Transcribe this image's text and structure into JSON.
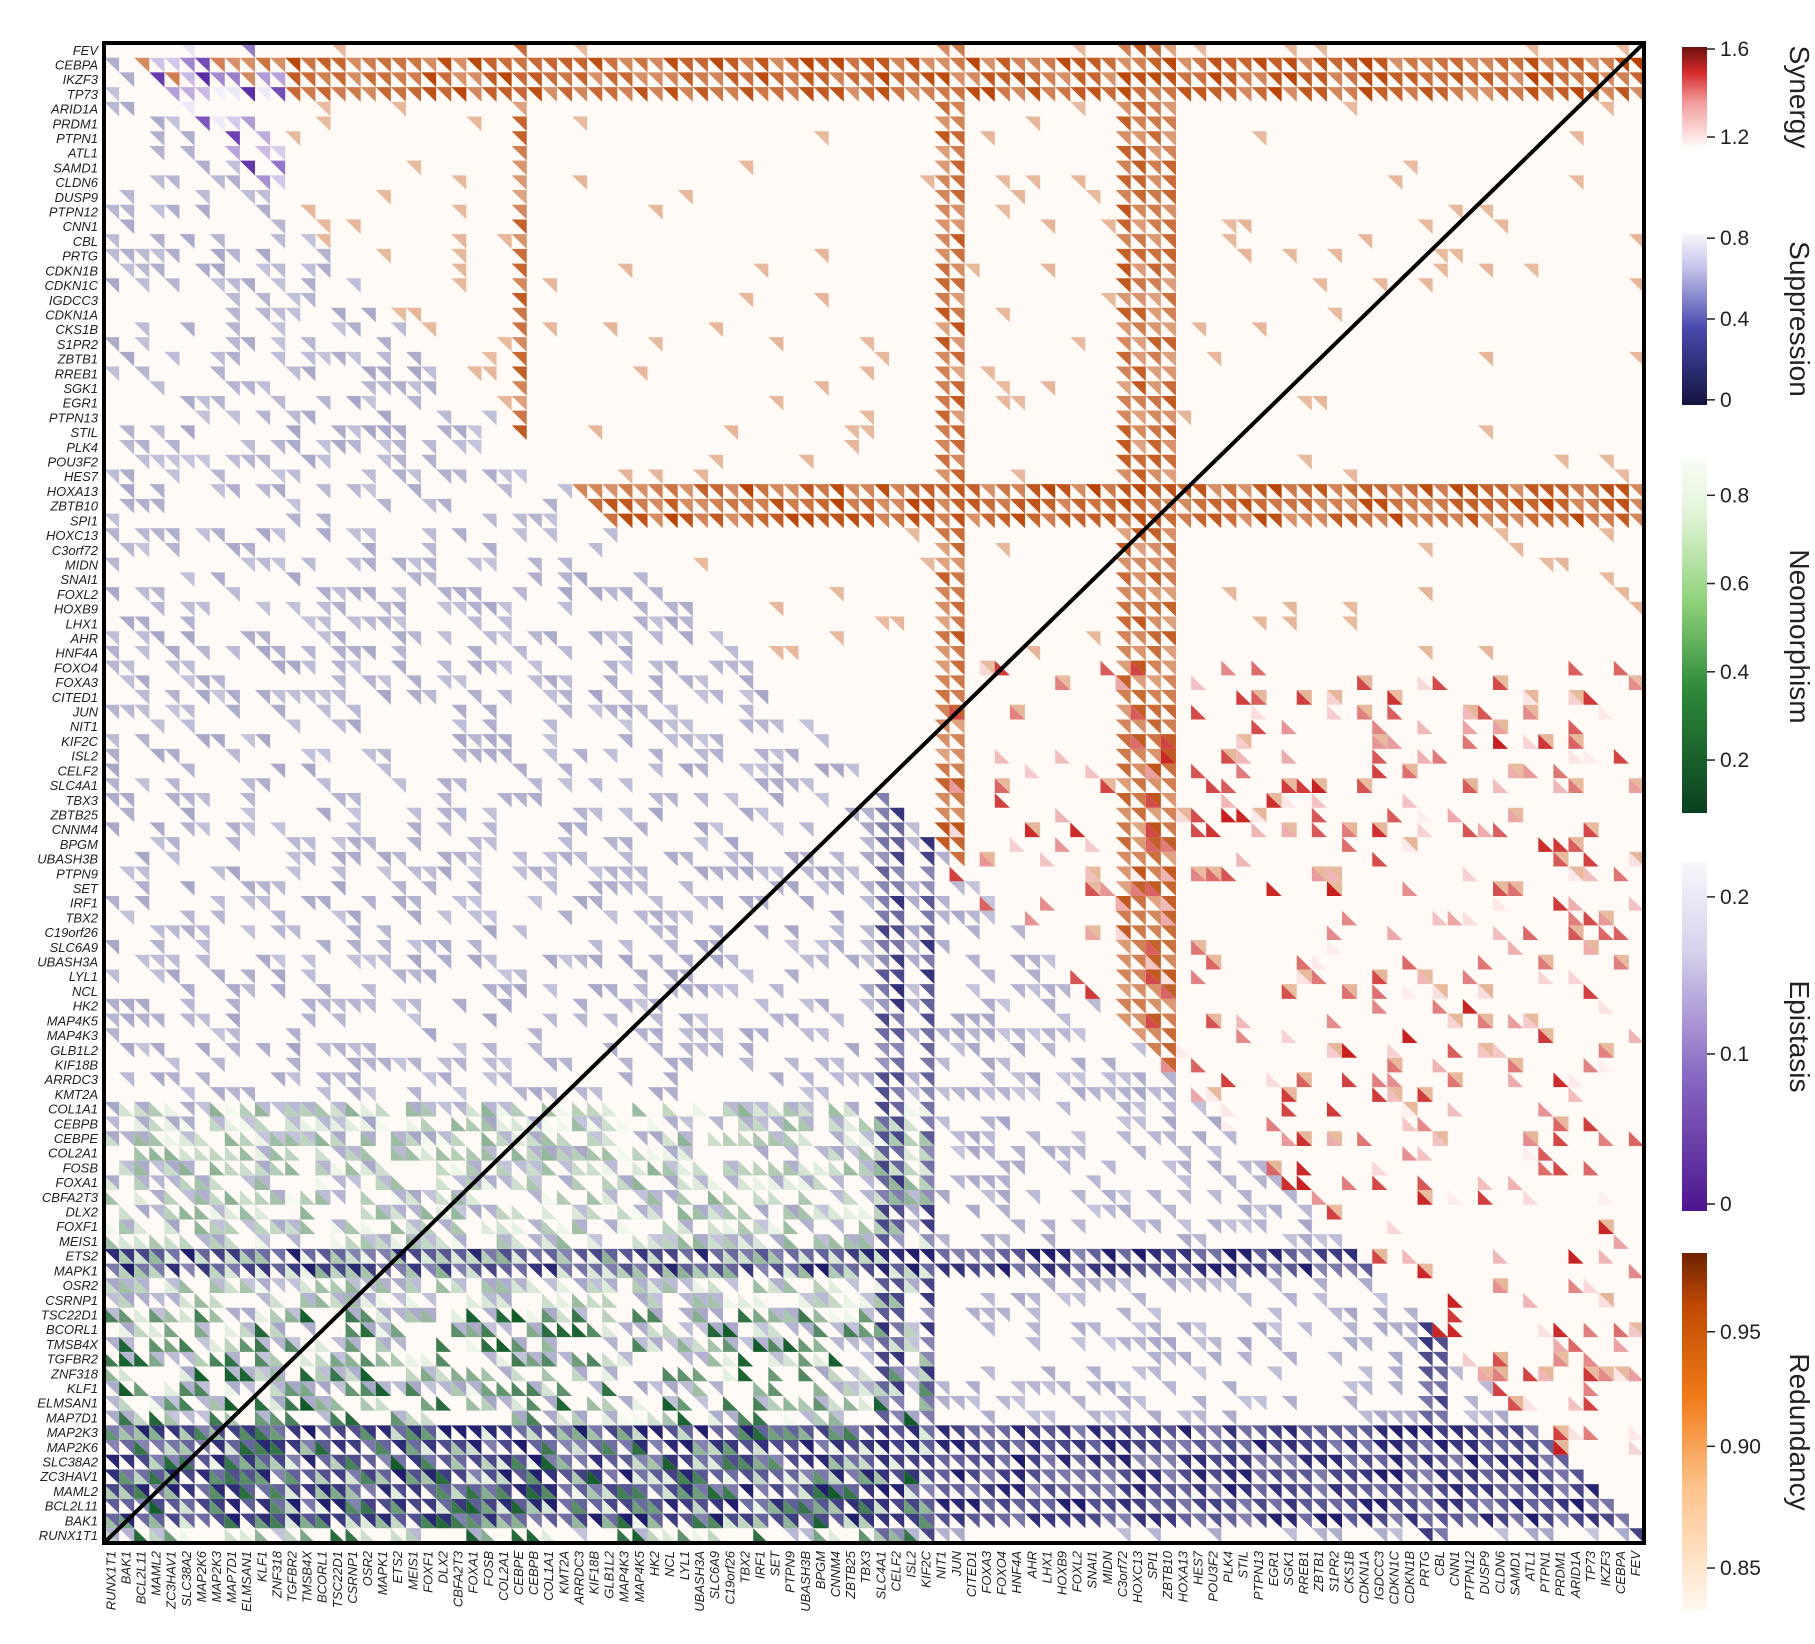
{
  "chart_data": {
    "type": "heatmap",
    "title": "",
    "xlabel": "",
    "ylabel": "",
    "description_layout": "symmetric gene-pair interaction matrix split by diagonal; each cell drawn as two triangles",
    "genes": [
      "RUNX1T1",
      "BAK1",
      "BCL2L11",
      "MAML2",
      "ZC3HAV1",
      "SLC38A2",
      "MAP2K6",
      "MAP2K3",
      "MAP7D1",
      "ELMSAN1",
      "KLF1",
      "ZNF318",
      "TGFBR2",
      "TMSB4X",
      "BCORL1",
      "TSC22D1",
      "CSRNP1",
      "OSR2",
      "MAPK1",
      "ETS2",
      "MEIS1",
      "FOXF1",
      "DLX2",
      "CBFA2T3",
      "FOXA1",
      "FOSB",
      "COL2A1",
      "CEBPE",
      "CEBPB",
      "COL1A1",
      "KMT2A",
      "ARRDC3",
      "KIF18B",
      "GLB1L2",
      "MAP4K3",
      "MAP4K5",
      "HK2",
      "NCL",
      "LYL1",
      "UBASH3A",
      "SLC6A9",
      "C19orf26",
      "TBX2",
      "IRF1",
      "SET",
      "PTPN9",
      "UBASH3B",
      "BPGM",
      "CNNM4",
      "ZBTB25",
      "TBX3",
      "SLC4A1",
      "CELF2",
      "ISL2",
      "KIF2C",
      "NIT1",
      "JUN",
      "CITED1",
      "FOXA3",
      "FOXO4",
      "HNF4A",
      "AHR",
      "LHX1",
      "HOXB9",
      "FOXL2",
      "SNAI1",
      "MIDN",
      "C3orf72",
      "HOXC13",
      "SPI1",
      "ZBTB10",
      "HOXA13",
      "HES7",
      "POU3F2",
      "PLK4",
      "STIL",
      "PTPN13",
      "EGR1",
      "SGK1",
      "RREB1",
      "ZBTB1",
      "S1PR2",
      "CKS1B",
      "CDKN1A",
      "IGDCC3",
      "CDKN1C",
      "CDKN1B",
      "PRTG",
      "CBL",
      "CNN1",
      "PTPN12",
      "DUSP9",
      "CLDN6",
      "SAMD1",
      "ATL1",
      "PTPN1",
      "PRDM1",
      "ARID1A",
      "TP73",
      "IKZF3",
      "CEBPA",
      "FEV"
    ],
    "upper_triangle_metrics": [
      "Synergy",
      "Redundancy",
      "Epistasis"
    ],
    "lower_triangle_metrics": [
      "Suppression",
      "Neomorphism",
      "Epistasis"
    ],
    "value_range": [
      0,
      1
    ],
    "colorbars": [
      {
        "name": "Synergy",
        "ticks": [
          "1.6",
          "1.2"
        ],
        "low_color": "#fff3f0",
        "high_color": "#8b1a1a"
      },
      {
        "name": "Suppression",
        "ticks": [
          "0.8",
          "0.4",
          "0"
        ],
        "low_color": "#f4f4fb",
        "high_color": "#1c1955"
      },
      {
        "name": "Neomorphism",
        "ticks": [
          "0.8",
          "0.6",
          "0.4",
          "0.2"
        ],
        "low_color": "#f4fbef",
        "high_color": "#0d4d24"
      },
      {
        "name": "Epistasis",
        "ticks": [
          "0.2",
          "0.1",
          "0"
        ],
        "low_color": "#f6f4fb",
        "high_color": "#4d1a8c"
      },
      {
        "name": "Redundancy",
        "ticks": [
          "0.95",
          "0.90",
          "0.85"
        ],
        "low_color": "#fff6ee",
        "high_color": "#7f2704"
      }
    ],
    "strong_upper_rows": [
      "CEBPA",
      "IKZF3",
      "TP73",
      "HOXA13",
      "ZBTB10",
      "SPI1"
    ],
    "strong_upper_cols": [
      "C3orf72",
      "HOXC13",
      "SPI1",
      "ZBTB10",
      "CEBPE",
      "NIT1",
      "JUN"
    ],
    "strong_lower_rows": [
      "MAP2K3",
      "MAP2K6",
      "SLC38A2",
      "ZC3HAV1",
      "MAML2",
      "BCL2L11",
      "BAK1",
      "MAPK1",
      "ETS2"
    ],
    "strong_lower_cols": [
      "SLC4A1",
      "CELF2",
      "KIF2C",
      "PRTG",
      "CBL",
      "FEV"
    ],
    "grid": false,
    "legend": "right"
  }
}
